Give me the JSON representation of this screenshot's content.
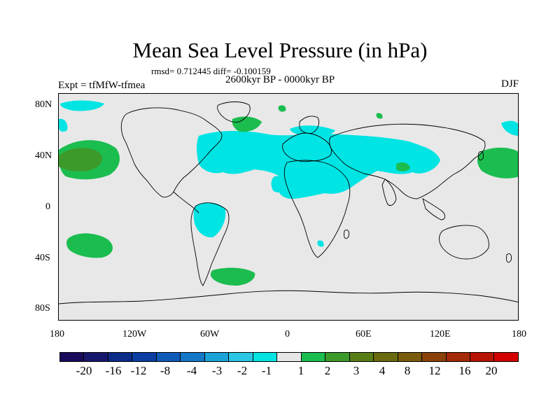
{
  "title": "Mean Sea Level Pressure (in hPa)",
  "stats": "rmsd= 0.712445 diff= -0.100159",
  "period": "2600kyr BP - 0000kyr BP",
  "experiment": "Expt = tfMfW-tfmea",
  "season": "DJF",
  "lat_ticks": [
    "80N",
    "40N",
    "0",
    "40S",
    "80S"
  ],
  "lon_ticks": [
    "180",
    "120W",
    "60W",
    "0",
    "60E",
    "120E",
    "180"
  ],
  "colorbar": {
    "colors": [
      "#1a0a5c",
      "#16186e",
      "#0b2d8a",
      "#0a3ea3",
      "#0f5bb8",
      "#1478c6",
      "#1ca3d6",
      "#2ac6e4",
      "#00e4e4",
      "#e6e6e6",
      "#1bbd4f",
      "#3c9a2a",
      "#577e16",
      "#6a6a10",
      "#7a5a0c",
      "#8a4209",
      "#a32a06",
      "#b81404",
      "#d40000"
    ],
    "labels": [
      "-20",
      "-16",
      "-12",
      "-8",
      "-4",
      "-3",
      "-2",
      "-1",
      "1",
      "2",
      "3",
      "4",
      "8",
      "12",
      "16",
      "20"
    ]
  },
  "map_colors": {
    "background": "#e8e8e8",
    "negative": "#00e4e4",
    "positive": "#1bbd4f",
    "strong_positive": "#3c9a2a",
    "coast": "#000000"
  }
}
